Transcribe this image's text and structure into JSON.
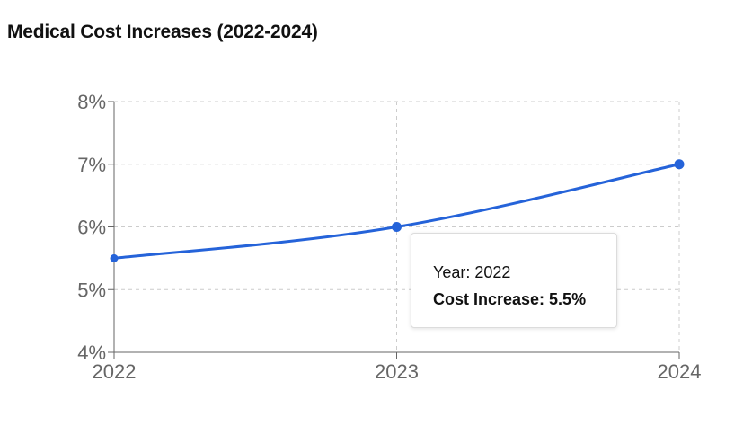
{
  "chart_data": {
    "type": "line",
    "title": "Medical Cost Increases (2022-2024)",
    "xlabel": "",
    "ylabel": "",
    "categories": [
      "2022",
      "2023",
      "2024"
    ],
    "x_tick_labels": [
      "2022",
      "2023",
      "2024"
    ],
    "y_tick_labels": [
      "4%",
      "5%",
      "6%",
      "7%",
      "8%"
    ],
    "y_ticks": [
      4,
      5,
      6,
      7,
      8
    ],
    "ylim": [
      4,
      8
    ],
    "grid": true,
    "series": [
      {
        "values": [
          5.5,
          6.0,
          7.0
        ]
      }
    ],
    "colors": {
      "line": "#2563d9",
      "grid": "#cccccc",
      "axis": "#666666"
    },
    "tooltip": {
      "year_line": "Year: 2022",
      "value_line": "Cost Increase: 5.5%"
    }
  }
}
